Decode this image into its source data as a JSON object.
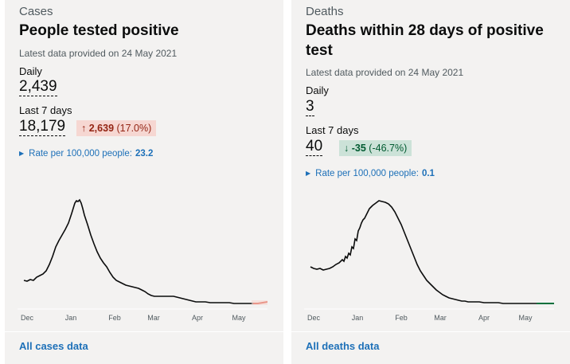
{
  "cases": {
    "caption": "Cases",
    "title": "People tested positive",
    "meta": "Latest data provided on 24 May 2021",
    "daily_label": "Daily",
    "daily_value": "2,439",
    "last7_label": "Last 7 days",
    "last7_value": "18,179",
    "change_arrow": "↑",
    "change_value": "2,639",
    "change_pct": "(17.0%)",
    "rate_label": "Rate per 100,000 people:",
    "rate_value": "23.2",
    "footer_link": "All cases data",
    "ticks": [
      "Dec",
      "Jan",
      "Feb",
      "Mar",
      "Apr",
      "May"
    ],
    "line_color": "#0b0c0c",
    "highlight_color": "#d4351c"
  },
  "deaths": {
    "caption": "Deaths",
    "title": "Deaths within 28 days of positive test",
    "meta": "Latest data provided on 24 May 2021",
    "daily_label": "Daily",
    "daily_value": "3",
    "last7_label": "Last 7 days",
    "last7_value": "40",
    "change_arrow": "↓",
    "change_value": "-35",
    "change_pct": "(-46.7%)",
    "rate_label": "Rate per 100,000 people:",
    "rate_value": "0.1",
    "footer_link": "All deaths data",
    "ticks": [
      "Dec",
      "Jan",
      "Feb",
      "Mar",
      "Apr",
      "May"
    ],
    "line_color": "#0b0c0c",
    "highlight_color": "#00703c"
  },
  "colors": {
    "card_bg": "#f3f2f1",
    "link": "#1d70b8",
    "up_bg": "#f6d7d2",
    "down_bg": "#cce2d8"
  }
}
